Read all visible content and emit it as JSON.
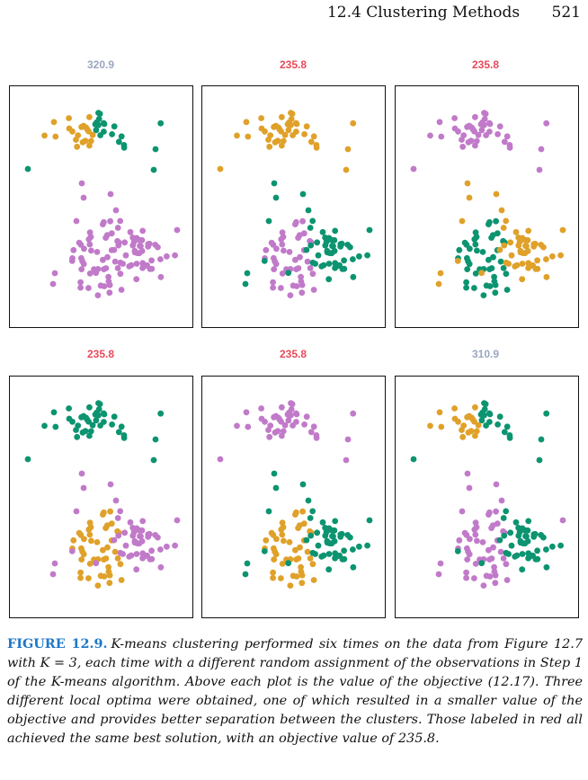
{
  "header": {
    "section": "12.4 Clustering Methods",
    "page": "521"
  },
  "colors": {
    "orange": "#e0a12a",
    "teal": "#0c9470",
    "pink": "#c17ac9",
    "best_title": "#e84a5a",
    "worse_title": "#9aa6c0"
  },
  "panels": [
    {
      "title": "320.9",
      "best": false,
      "label_map": {
        "A": "orange",
        "B": "teal",
        "C": "pink",
        "D": "pink",
        "E": "pink"
      }
    },
    {
      "title": "235.8",
      "best": true,
      "label_map": {
        "A": "orange",
        "B": "orange",
        "C": "teal",
        "D": "pink",
        "E": "teal"
      }
    },
    {
      "title": "235.8",
      "best": true,
      "label_map": {
        "A": "pink",
        "B": "pink",
        "C": "orange",
        "D": "teal",
        "E": "orange"
      }
    },
    {
      "title": "235.8",
      "best": true,
      "label_map": {
        "A": "teal",
        "B": "teal",
        "C": "pink",
        "D": "orange",
        "E": "pink"
      }
    },
    {
      "title": "235.8",
      "best": true,
      "label_map": {
        "A": "pink",
        "B": "pink",
        "C": "teal",
        "D": "orange",
        "E": "teal"
      }
    },
    {
      "title": "310.9",
      "best": false,
      "label_map": {
        "A": "orange",
        "B": "teal",
        "C": "pink",
        "D": "pink",
        "E": "teal"
      }
    }
  ],
  "caption": {
    "label": "FIGURE 12.9.",
    "text": "K-means clustering performed six times on the data from Figure 12.7 with K = 3, each time with a different random assignment of the observations in Step 1 of the K-means algorithm. Above each plot is the value of the objective (12.17). Three different local optima were obtained, one of which resulted in a smaller value of the objective and provides better separation between the clusters. Those labeled in red all achieved the same best solution, with an objective value of 235.8."
  },
  "chart_data": [
    {
      "type": "scatter",
      "title": "320.9",
      "series": [
        {
          "values": []
        }
      ]
    },
    {
      "type": "scatter",
      "title": "235.8",
      "series": [
        {
          "values": []
        }
      ]
    },
    {
      "type": "scatter",
      "title": "235.8",
      "series": [
        {
          "values": []
        }
      ]
    },
    {
      "type": "scatter",
      "title": "235.8",
      "series": [
        {
          "values": []
        }
      ]
    },
    {
      "type": "scatter",
      "title": "235.8",
      "series": [
        {
          "values": []
        }
      ]
    },
    {
      "type": "scatter",
      "title": "310.9",
      "series": [
        {
          "values": []
        }
      ]
    }
  ]
}
